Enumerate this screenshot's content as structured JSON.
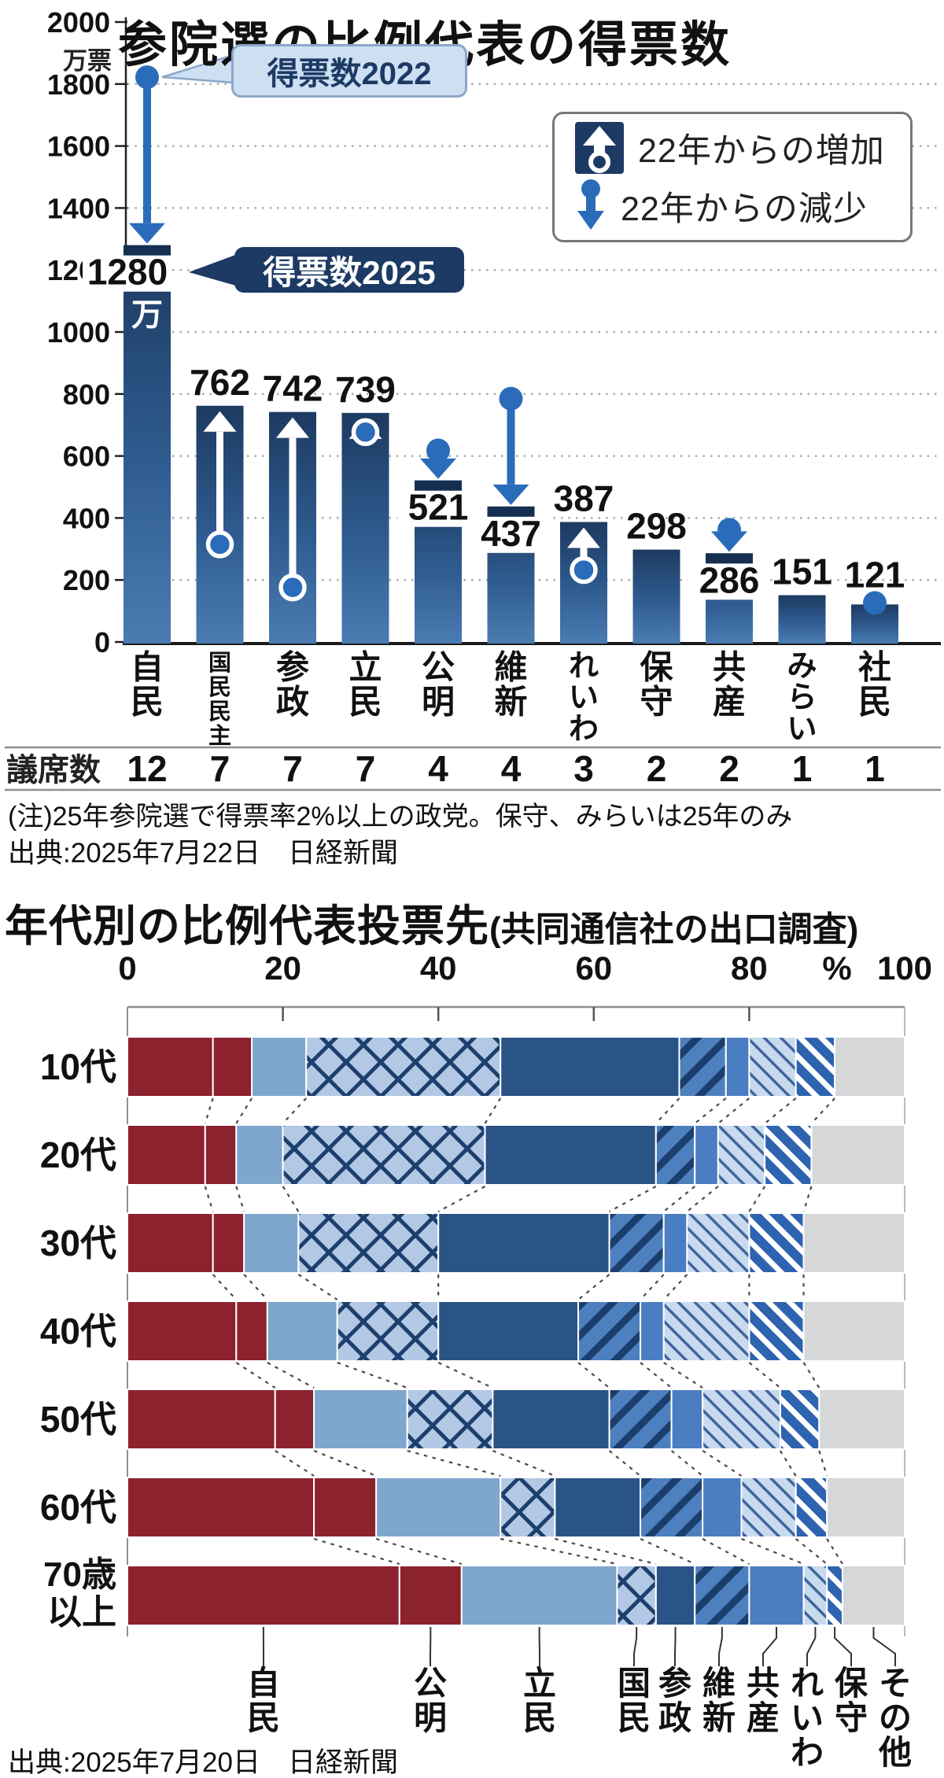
{
  "top_chart": {
    "title": "参院選の比例代表の得票数",
    "unit": "万票",
    "callout_2022": "得票数2022",
    "callout_2025": "得票数2025",
    "legend_increase": "22年からの増加",
    "legend_decrease": "22年からの減少",
    "seats_label": "議席数",
    "note": "(注)25年参院選で得票率2%以上の政党。保守、みらいは25年のみ",
    "source": "出典:2025年7月22日　日経新聞"
  },
  "bottom_chart": {
    "title": "年代別の比例代表投票先",
    "title_suffix": "(共同通信社の出口調査)",
    "percent_sign": "%",
    "source": "出典:2025年7月20日　日経新聞"
  },
  "colors": {
    "bar_top": "#1d3a61",
    "bar_mid": "#2f5c90",
    "bar_bottom": "#4a7cb2",
    "bar_cap": "#152f52",
    "arrow_blue": "#2b6cba",
    "navy": "#1c3a64",
    "grid": "#a8adb3",
    "axis": "#222222",
    "red": "#8c222e",
    "rikken": "#7fa6cd",
    "cross_bg": "#b2c8e4",
    "cross_line": "#1d3f6e",
    "sansei": "#2a5486",
    "ishin_bg": "#4d80bf",
    "ishin_stripe": "#1c3e6c",
    "kyosan": "#4b7dc2",
    "reiwa_bg": "#c8daee",
    "reiwa_stripe": "#3f659b",
    "hoshu_bg": "#2e63b0",
    "hoshu_stripe": "#ffffff",
    "other": "#d5d7d9",
    "connector_dash": "#4a4a4a",
    "callout2022_bg": "#cddff2",
    "callout2022_border": "#8ba7ca"
  },
  "chart_data": [
    {
      "type": "bar",
      "title": "参院選の比例代表の得票数",
      "ylabel": "万票",
      "ylim": [
        0,
        2000
      ],
      "ytick_step": 200,
      "categories": [
        "自民",
        "国民民主",
        "参政",
        "立民",
        "公明",
        "維新",
        "れいわ",
        "保守",
        "共産",
        "みらい",
        "社民"
      ],
      "values_2025": [
        1280,
        762,
        742,
        739,
        521,
        437,
        387,
        298,
        286,
        151,
        121
      ],
      "values_2022": [
        1822,
        315,
        176,
        677,
        618,
        785,
        232,
        null,
        362,
        null,
        126
      ],
      "value_labels": [
        "1280",
        "762",
        "742",
        "739",
        "521",
        "437",
        "387",
        "298",
        "286",
        "151",
        "121"
      ],
      "first_bar_unit": "万",
      "label_inside": [
        true,
        false,
        false,
        false,
        true,
        true,
        false,
        false,
        true,
        false,
        false
      ],
      "seats": [
        12,
        7,
        7,
        7,
        4,
        4,
        3,
        2,
        2,
        1,
        1
      ]
    },
    {
      "type": "stacked-bar-horizontal",
      "unit": "%",
      "xticks": [
        0,
        20,
        40,
        60,
        80,
        100
      ],
      "age_groups": [
        "10代",
        "20代",
        "30代",
        "40代",
        "50代",
        "60代",
        "70歳以上"
      ],
      "age_group_lines_last": [
        "70歳",
        "以上"
      ],
      "parties": [
        "自民",
        "公明",
        "立民",
        "国民",
        "参政",
        "維新",
        "共産",
        "れいわ",
        "保守",
        "その他"
      ],
      "styles": [
        "red",
        "red",
        "rikken",
        "cross",
        "sansei",
        "ishin",
        "kyosan",
        "reiwa",
        "hoshu",
        "other"
      ],
      "values": [
        [
          11,
          5,
          7,
          25,
          23,
          6,
          3,
          6,
          5,
          9
        ],
        [
          10,
          4,
          6,
          26,
          22,
          5,
          3,
          6,
          6,
          12
        ],
        [
          11,
          4,
          7,
          18,
          22,
          7,
          3,
          8,
          7,
          13
        ],
        [
          14,
          4,
          9,
          13,
          18,
          8,
          3,
          11,
          7,
          13
        ],
        [
          19,
          5,
          12,
          11,
          15,
          8,
          4,
          10,
          5,
          11
        ],
        [
          24,
          8,
          16,
          7,
          11,
          8,
          5,
          7,
          4,
          10
        ],
        [
          35,
          8,
          20,
          5,
          5,
          7,
          7,
          3,
          2,
          8
        ]
      ]
    }
  ]
}
